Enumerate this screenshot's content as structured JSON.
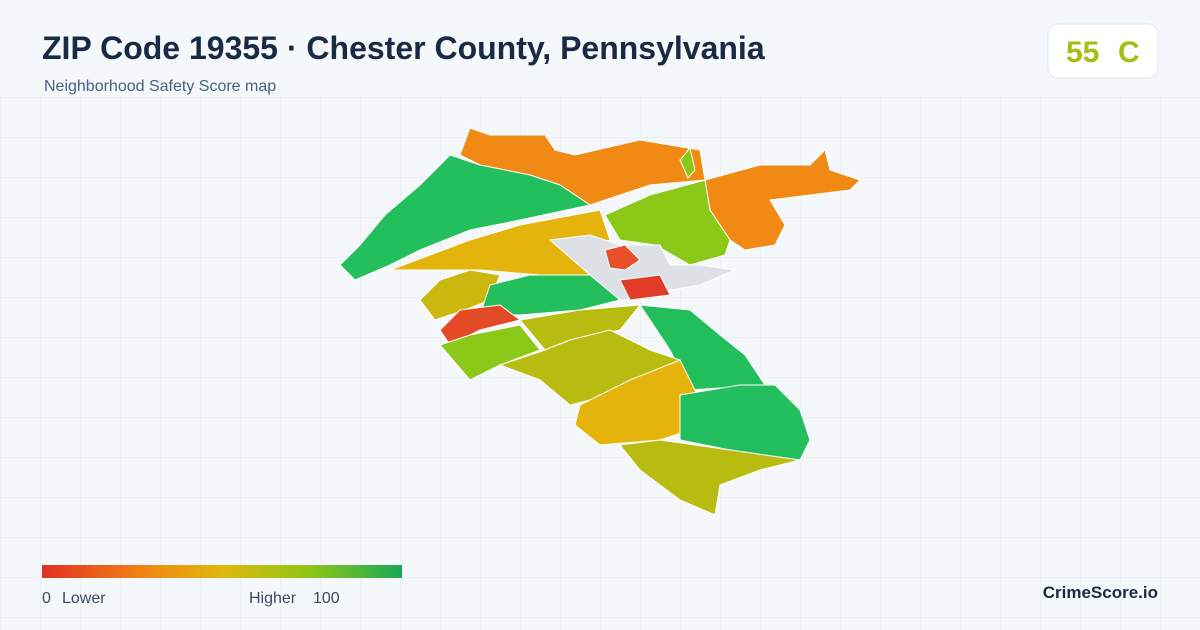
{
  "header": {
    "title": "ZIP Code 19355 · Chester County, Pennsylvania",
    "subtitle": "Neighborhood Safety Score map"
  },
  "badge": {
    "score": "55",
    "grade": "C"
  },
  "legend": {
    "min": "0",
    "min_label": "Lower",
    "max_label": "Higher",
    "max": "100"
  },
  "brand": "CrimeScore.io"
}
